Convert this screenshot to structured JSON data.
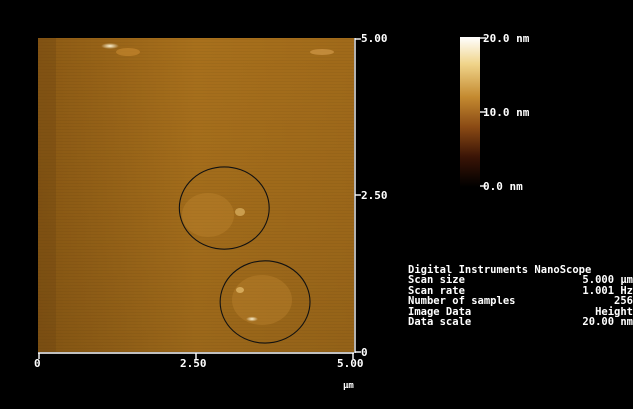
{
  "scan": {
    "x_axis": {
      "tick_labels": [
        "0",
        "2.50",
        "5.00"
      ],
      "unit": "µm"
    },
    "y_axis": {
      "tick_labels": [
        "5.00",
        "2.50",
        "0"
      ]
    },
    "colorbar": {
      "labels": [
        "20.0 nm",
        "10.0 nm",
        "0.0 nm"
      ],
      "colors": [
        "#ffffff",
        "#b0641e",
        "#000000"
      ]
    },
    "surface_color": "#a8701c",
    "annotations": [
      {
        "shape": "circle",
        "center_um": [
          2.95,
          2.3
        ],
        "radius_um": 0.73
      },
      {
        "shape": "circle",
        "center_um": [
          3.6,
          0.8
        ],
        "radius_um": 0.73
      }
    ]
  },
  "info": {
    "heading": "Digital Instruments NanoScope",
    "rows": [
      {
        "key": "Scan size",
        "value": "5.000 µm"
      },
      {
        "key": "Scan rate",
        "value": "1.001 Hz"
      },
      {
        "key": "Number of samples",
        "value": "256"
      },
      {
        "key": "Image Data",
        "value": "Height"
      },
      {
        "key": "Data scale",
        "value": "20.00 nm"
      }
    ]
  }
}
